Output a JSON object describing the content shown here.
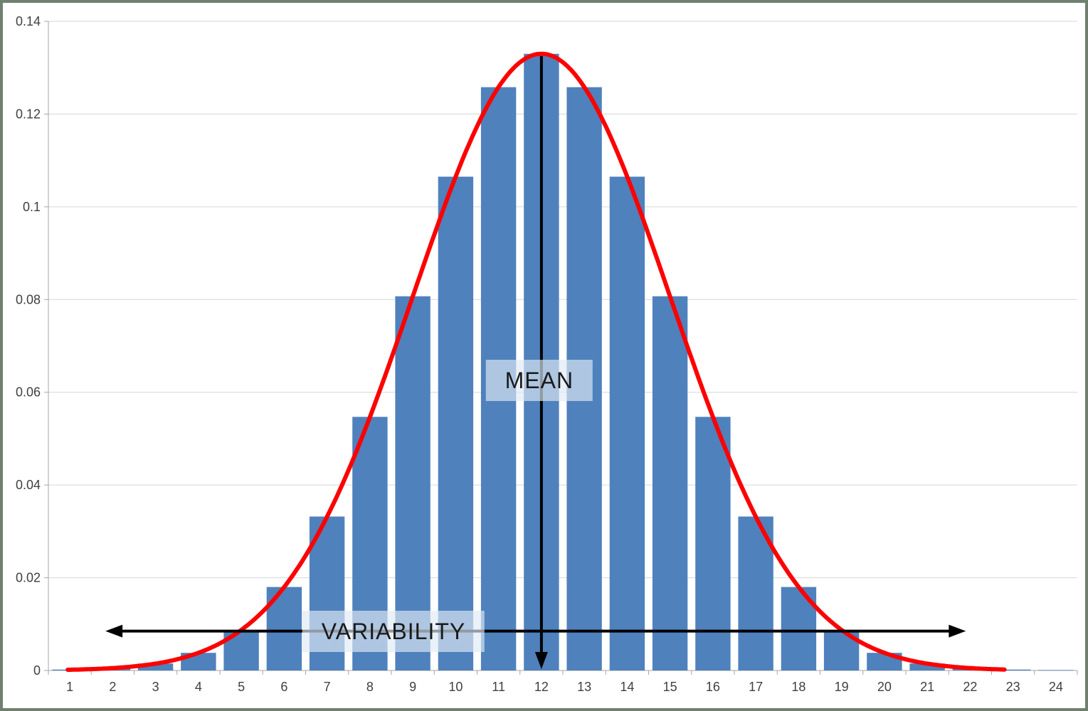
{
  "chart_data": {
    "type": "bar",
    "title": "",
    "categories": [
      1,
      2,
      3,
      4,
      5,
      6,
      7,
      8,
      9,
      10,
      11,
      12,
      13,
      14,
      15,
      16,
      17,
      18,
      19,
      20,
      21,
      22,
      23,
      24
    ],
    "values": [
      0.0002,
      0.0005,
      0.0015,
      0.0038,
      0.0087,
      0.018,
      0.0332,
      0.0547,
      0.0807,
      0.1065,
      0.1258,
      0.133,
      0.1258,
      0.1065,
      0.0807,
      0.0547,
      0.0332,
      0.018,
      0.0087,
      0.0038,
      0.0015,
      0.0005,
      0.0002,
      0.0001
    ],
    "ylim": [
      0,
      0.14
    ],
    "ytick_step": 0.02,
    "ytick_labels": [
      "0",
      "0.02",
      "0.04",
      "0.06",
      "0.08",
      "0.1",
      "0.12",
      "0.14"
    ],
    "grid": true,
    "legend": false,
    "bar_color": "#4f81bd",
    "colors": {
      "grid": "#d6d6d6",
      "axis": "#a6a6a6",
      "text": "#3f3f3f",
      "arrow": "#000000"
    },
    "curve": {
      "type": "normal",
      "mean": 12,
      "sd": 3,
      "peak": 0.133,
      "color": "#ff0000",
      "x_range": [
        0.95,
        22.8
      ]
    },
    "annotations": {
      "mean": {
        "label": "MEAN",
        "arrow": {
          "x": 12,
          "from": 0.1325,
          "to": 0.0003
        },
        "label_pos": {
          "x": 11.95,
          "y": 0.0625
        }
      },
      "variability": {
        "label": "VARIABILITY",
        "arrow": {
          "y": 0.0085,
          "from": 1.83,
          "to": 21.9
        },
        "label_pos": {
          "x": 8.55,
          "y": 0.0085
        }
      }
    }
  }
}
